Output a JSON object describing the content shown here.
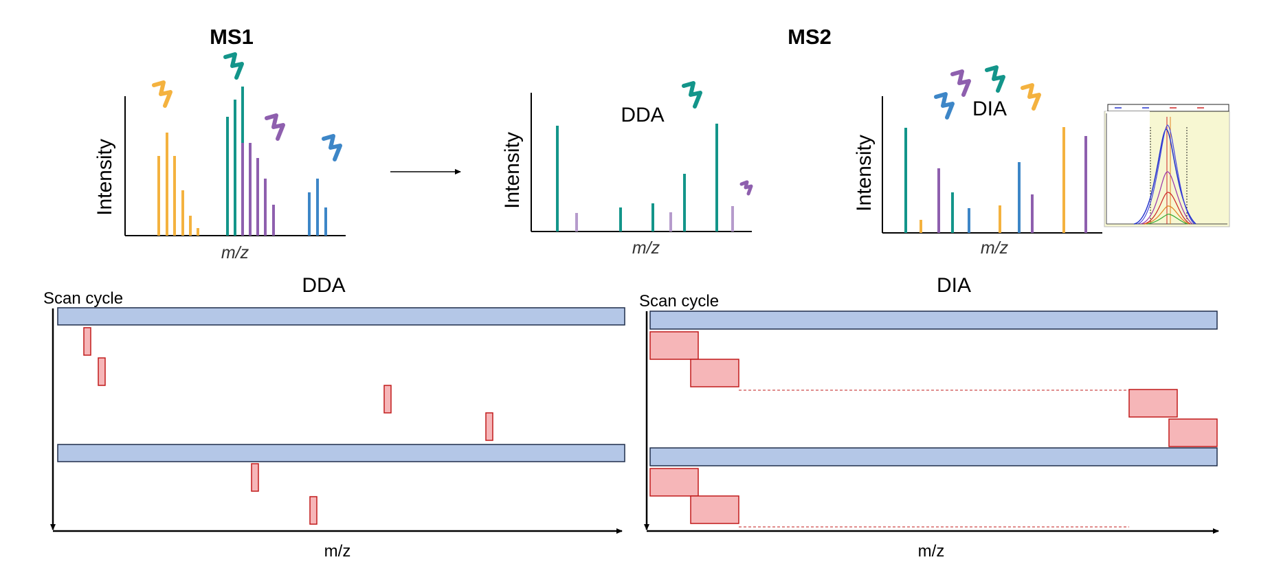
{
  "top": {
    "ms1_title": "MS1",
    "ms2_title": "MS2",
    "ylabel": "Intensity",
    "xlabel": "m/z",
    "dda_label": "DDA",
    "dia_label": "DIA"
  },
  "bottom": {
    "dda_title": "DDA",
    "dia_title": "DIA",
    "scan_cycle": "Scan cycle",
    "xlabel": "m/z"
  },
  "colors": {
    "orange": "#F4B23F",
    "teal": "#13958A",
    "purple": "#8E5FAE",
    "blue": "#3D86C7",
    "ms1_bar_fill": "#B4C7E7",
    "ms1_bar_stroke": "#1F2D4A",
    "window_fill": "#F6B6B8",
    "window_stroke": "#C01A1A"
  },
  "icons": [
    "orange-peptide-icon",
    "teal-peptide-icon",
    "purple-peptide-icon",
    "blue-peptide-icon",
    "xic-inset-image"
  ]
}
